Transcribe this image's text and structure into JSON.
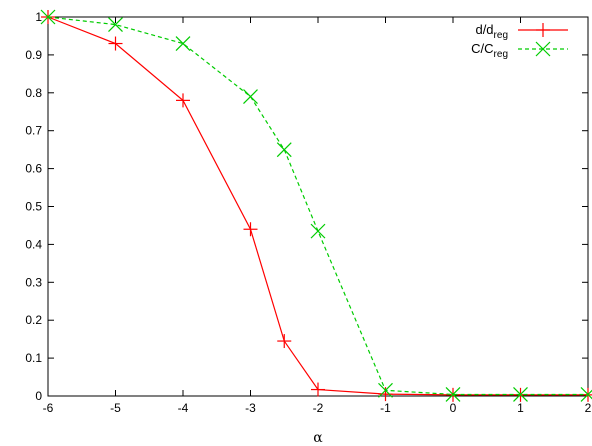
{
  "chart_data": {
    "type": "line",
    "xlabel": "α",
    "ylabel": "",
    "xlim": [
      -6,
      2
    ],
    "ylim": [
      0,
      1
    ],
    "x_ticks": [
      "-6",
      "-5",
      "-4",
      "-3",
      "-2",
      "-1",
      "0",
      "1",
      "2"
    ],
    "y_ticks": [
      "0",
      "0.1",
      "0.2",
      "0.3",
      "0.4",
      "0.5",
      "0.6",
      "0.7",
      "0.8",
      "0.9",
      "1"
    ],
    "grid": false,
    "legend_position": "top-right",
    "series": [
      {
        "name": "d/d",
        "name_sub": "reg",
        "color": "#ff0000",
        "marker": "plus",
        "line_style": "solid",
        "x": [
          -6,
          -5,
          -4,
          -3,
          -2.5,
          -2,
          -1,
          0,
          1,
          2
        ],
        "y": [
          1.0,
          0.93,
          0.78,
          0.44,
          0.145,
          0.017,
          0.005,
          0.003,
          0.003,
          0.003
        ]
      },
      {
        "name": "C/C",
        "name_sub": "reg",
        "color": "#00cc00",
        "marker": "cross",
        "line_style": "dashed",
        "x": [
          -6,
          -5,
          -4,
          -3,
          -2.5,
          -2,
          -1,
          0,
          1,
          2
        ],
        "y": [
          1.0,
          0.98,
          0.93,
          0.79,
          0.65,
          0.435,
          0.015,
          0.004,
          0.004,
          0.004
        ]
      }
    ]
  }
}
